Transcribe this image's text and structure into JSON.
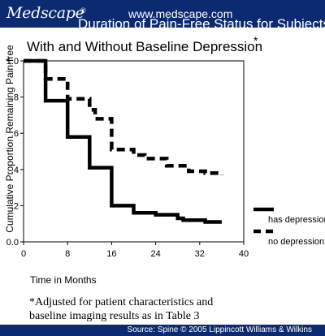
{
  "header": {
    "brand": "Medscape",
    "brand_mark": "®",
    "site": "www.medscape.com",
    "bar_color": "#0b2a6f"
  },
  "chart_data": {
    "type": "line",
    "title_line1": "Duration of Pain-Free Status for Subjects",
    "title_line2": "With and Without Baseline Depression",
    "title_marker": "*",
    "xlabel": "Time in Months",
    "ylabel": "Cumulative Proportion Remaining Pain-free",
    "xlim": [
      0,
      40
    ],
    "ylim": [
      0,
      1.0
    ],
    "x_ticks": [
      0,
      8,
      16,
      24,
      32,
      40
    ],
    "y_ticks": [
      {
        "value": 0,
        "label": "0.0"
      },
      {
        "value": 0.2,
        "label": ".2"
      },
      {
        "value": 0.4,
        "label": ".4"
      },
      {
        "value": 0.6,
        "label": ".6"
      },
      {
        "value": 0.8,
        "label": ".8"
      },
      {
        "value": 1.0,
        "label": "1.0"
      }
    ],
    "grid": false,
    "legend_position": "right",
    "series": [
      {
        "name": "has depression",
        "style": "solid",
        "points": [
          [
            0,
            1.0
          ],
          [
            4,
            1.0
          ],
          [
            4,
            0.78
          ],
          [
            8,
            0.78
          ],
          [
            8,
            0.58
          ],
          [
            12,
            0.58
          ],
          [
            12,
            0.41
          ],
          [
            16,
            0.41
          ],
          [
            16,
            0.2
          ],
          [
            20,
            0.2
          ],
          [
            20,
            0.16
          ],
          [
            24,
            0.16
          ],
          [
            24,
            0.15
          ],
          [
            28,
            0.15
          ],
          [
            28,
            0.13
          ],
          [
            29,
            0.13
          ],
          [
            29,
            0.12
          ],
          [
            33,
            0.12
          ],
          [
            33,
            0.11
          ],
          [
            36,
            0.11
          ]
        ]
      },
      {
        "name": "no depression",
        "style": "dashed",
        "points": [
          [
            0,
            1.0
          ],
          [
            4,
            1.0
          ],
          [
            4,
            0.9
          ],
          [
            8,
            0.9
          ],
          [
            8,
            0.79
          ],
          [
            12,
            0.79
          ],
          [
            12,
            0.73
          ],
          [
            13,
            0.73
          ],
          [
            13,
            0.68
          ],
          [
            16,
            0.68
          ],
          [
            16,
            0.51
          ],
          [
            20,
            0.51
          ],
          [
            20,
            0.48
          ],
          [
            22,
            0.48
          ],
          [
            22,
            0.46
          ],
          [
            26,
            0.46
          ],
          [
            26,
            0.42
          ],
          [
            30,
            0.42
          ],
          [
            30,
            0.39
          ],
          [
            33,
            0.39
          ],
          [
            33,
            0.38
          ],
          [
            36,
            0.38
          ],
          [
            36,
            0.37
          ]
        ]
      }
    ]
  },
  "footnote": {
    "line1": "*Adjusted for patient characteristics and",
    "line2": "baseline imaging results as in Table 3"
  },
  "footer": {
    "source": "Source: Spine © 2005 Lippincott Williams & Wilkins"
  }
}
